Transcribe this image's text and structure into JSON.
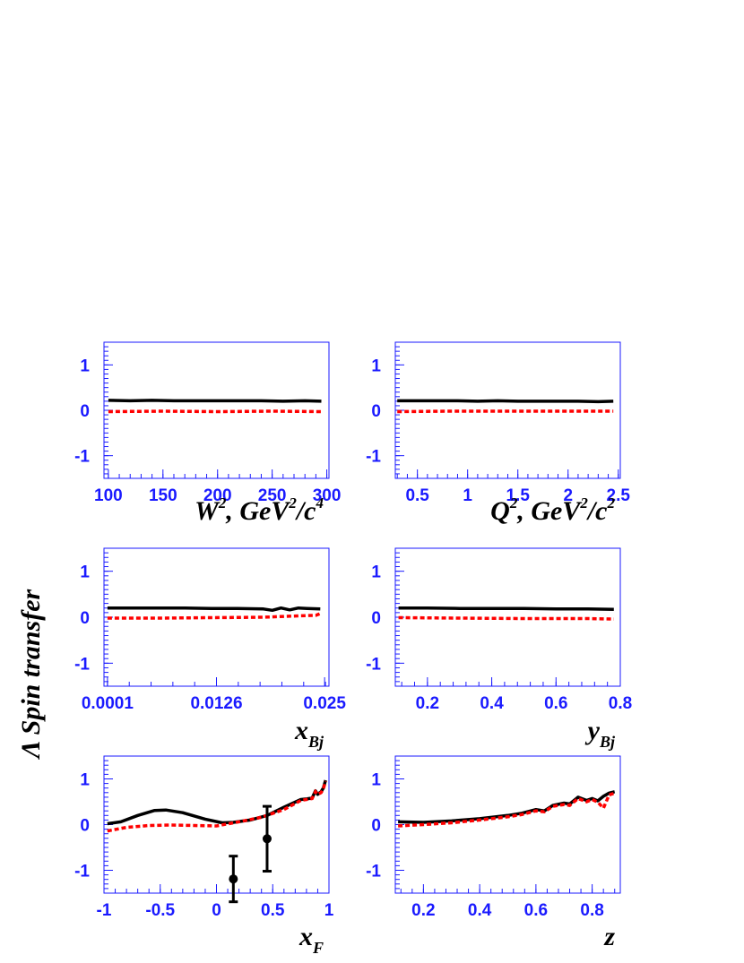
{
  "ylabel": "Λ Spin transfer",
  "colors": {
    "axis": "#1a1aff",
    "solid": "#000000",
    "dashed": "#ff0000"
  },
  "chart_data": [
    {
      "type": "line",
      "panel": "top-left",
      "xlabel": {
        "main": "W",
        "sup": "2",
        "rest": ", GeV",
        "sup2": "2",
        "rest2": "/c",
        "sup3": "4"
      },
      "xlim": [
        96,
        302
      ],
      "ylim": [
        -1.5,
        1.5
      ],
      "xticks": [
        100,
        150,
        200,
        250,
        300
      ],
      "xtick_labels": [
        "100",
        "150",
        "200",
        "250",
        "300"
      ],
      "yticks": [
        -1,
        0,
        1
      ],
      "ytick_labels": [
        "-1",
        "0",
        "1"
      ],
      "series": [
        {
          "style": "solid",
          "x": [
            100,
            120,
            140,
            160,
            180,
            200,
            220,
            240,
            260,
            280,
            295
          ],
          "y": [
            0.22,
            0.21,
            0.22,
            0.21,
            0.21,
            0.21,
            0.21,
            0.21,
            0.2,
            0.21,
            0.2
          ]
        },
        {
          "style": "dashed",
          "x": [
            100,
            150,
            200,
            250,
            295
          ],
          "y": [
            -0.03,
            -0.02,
            -0.03,
            -0.02,
            -0.03
          ]
        }
      ]
    },
    {
      "type": "line",
      "panel": "top-right",
      "xlabel": {
        "main": "Q",
        "sup": "2",
        "rest": ", GeV",
        "sup2": "2",
        "rest2": "/c",
        "sup3": "2"
      },
      "xlim": [
        0.28,
        2.52
      ],
      "ylim": [
        -1.5,
        1.5
      ],
      "xticks": [
        0.5,
        1,
        1.5,
        2,
        2.5
      ],
      "xtick_labels": [
        "0.5",
        "1",
        "1.5",
        "2",
        "2.5"
      ],
      "yticks": [
        -1,
        0,
        1
      ],
      "ytick_labels": [
        "-1",
        "0",
        "1"
      ],
      "series": [
        {
          "style": "solid",
          "x": [
            0.3,
            0.5,
            0.7,
            0.9,
            1.1,
            1.3,
            1.5,
            1.7,
            1.9,
            2.1,
            2.3,
            2.45
          ],
          "y": [
            0.21,
            0.21,
            0.21,
            0.21,
            0.2,
            0.21,
            0.2,
            0.2,
            0.2,
            0.2,
            0.19,
            0.2
          ]
        },
        {
          "style": "dashed",
          "x": [
            0.3,
            0.8,
            1.3,
            1.8,
            2.45
          ],
          "y": [
            -0.03,
            -0.02,
            -0.02,
            -0.02,
            -0.02
          ]
        }
      ]
    },
    {
      "type": "line",
      "panel": "middle-left",
      "xlabel": {
        "main": "x",
        "sub": "Bj"
      },
      "xlim": [
        -0.0003,
        0.0255
      ],
      "ylim": [
        -1.5,
        1.5
      ],
      "xticks": [
        0.0001,
        0.0126,
        0.025
      ],
      "xtick_labels": [
        "0.0001",
        "0.0126",
        "0.025"
      ],
      "yticks": [
        -1,
        0,
        1
      ],
      "ytick_labels": [
        "-1",
        "0",
        "1"
      ],
      "series": [
        {
          "style": "solid",
          "x": [
            0.0001,
            0.003,
            0.006,
            0.009,
            0.012,
            0.015,
            0.018,
            0.019,
            0.02,
            0.021,
            0.022,
            0.023,
            0.0245
          ],
          "y": [
            0.2,
            0.2,
            0.2,
            0.2,
            0.19,
            0.19,
            0.18,
            0.15,
            0.2,
            0.16,
            0.2,
            0.19,
            0.18
          ]
        },
        {
          "style": "dashed",
          "x": [
            0.0001,
            0.006,
            0.012,
            0.018,
            0.022,
            0.024,
            0.0245
          ],
          "y": [
            -0.02,
            -0.02,
            -0.01,
            0.0,
            0.03,
            0.04,
            0.08
          ]
        }
      ]
    },
    {
      "type": "line",
      "panel": "middle-right",
      "xlabel": {
        "main": "y",
        "sub": "Bj"
      },
      "xlim": [
        0.1,
        0.8
      ],
      "ylim": [
        -1.5,
        1.5
      ],
      "xticks": [
        0.2,
        0.4,
        0.6,
        0.8
      ],
      "xtick_labels": [
        "0.2",
        "0.4",
        "0.6",
        "0.8"
      ],
      "yticks": [
        -1,
        0,
        1
      ],
      "ytick_labels": [
        "-1",
        "0",
        "1"
      ],
      "series": [
        {
          "style": "solid",
          "x": [
            0.11,
            0.2,
            0.3,
            0.4,
            0.5,
            0.6,
            0.7,
            0.78
          ],
          "y": [
            0.2,
            0.2,
            0.19,
            0.19,
            0.19,
            0.18,
            0.18,
            0.17
          ]
        },
        {
          "style": "dashed",
          "x": [
            0.11,
            0.3,
            0.5,
            0.7,
            0.78
          ],
          "y": [
            -0.01,
            -0.02,
            -0.03,
            -0.03,
            -0.04
          ]
        }
      ]
    },
    {
      "type": "line",
      "panel": "bottom-left",
      "xlabel": {
        "main": "x",
        "sub": "F"
      },
      "xlim": [
        -1.0,
        1.0
      ],
      "ylim": [
        -1.5,
        1.5
      ],
      "xticks": [
        -1,
        -0.5,
        0,
        0.5,
        1
      ],
      "xtick_labels": [
        "-1",
        "-0.5",
        "0",
        "0.5",
        "1"
      ],
      "yticks": [
        -1,
        0,
        1
      ],
      "ytick_labels": [
        "-1",
        "0",
        "1"
      ],
      "series": [
        {
          "style": "solid",
          "x": [
            -0.97,
            -0.85,
            -0.7,
            -0.55,
            -0.45,
            -0.3,
            -0.1,
            0.05,
            0.15,
            0.3,
            0.45,
            0.6,
            0.75,
            0.8,
            0.85,
            0.88,
            0.9,
            0.93,
            0.95,
            0.97
          ],
          "y": [
            0.02,
            0.06,
            0.2,
            0.31,
            0.32,
            0.26,
            0.12,
            0.04,
            0.05,
            0.1,
            0.2,
            0.38,
            0.55,
            0.56,
            0.58,
            0.74,
            0.66,
            0.72,
            0.8,
            0.97
          ]
        },
        {
          "style": "dashed",
          "x": [
            -0.97,
            -0.8,
            -0.6,
            -0.4,
            -0.2,
            0.0,
            0.2,
            0.4,
            0.6,
            0.75,
            0.8,
            0.85,
            0.88,
            0.9,
            0.93,
            0.95,
            0.97
          ],
          "y": [
            -0.14,
            -0.06,
            -0.02,
            -0.01,
            -0.02,
            -0.03,
            0.06,
            0.16,
            0.33,
            0.53,
            0.55,
            0.57,
            0.72,
            0.66,
            0.7,
            0.78,
            0.95
          ]
        }
      ],
      "points": [
        {
          "x": 0.15,
          "y": -1.19,
          "err": 0.5
        },
        {
          "x": 0.45,
          "y": -0.31,
          "err": 0.71
        }
      ]
    },
    {
      "type": "line",
      "panel": "bottom-right",
      "xlabel": {
        "main": "z"
      },
      "xlim": [
        0.1,
        0.9
      ],
      "ylim": [
        -1.5,
        1.5
      ],
      "xticks": [
        0.2,
        0.4,
        0.6,
        0.8
      ],
      "xtick_labels": [
        "0.2",
        "0.4",
        "0.6",
        "0.8"
      ],
      "yticks": [
        -1,
        0,
        1
      ],
      "ytick_labels": [
        "-1",
        "0",
        "1"
      ],
      "series": [
        {
          "style": "solid",
          "x": [
            0.11,
            0.2,
            0.3,
            0.4,
            0.5,
            0.55,
            0.6,
            0.63,
            0.66,
            0.7,
            0.72,
            0.75,
            0.78,
            0.8,
            0.82,
            0.84,
            0.86,
            0.88
          ],
          "y": [
            0.06,
            0.05,
            0.08,
            0.13,
            0.2,
            0.25,
            0.33,
            0.3,
            0.42,
            0.47,
            0.45,
            0.6,
            0.53,
            0.57,
            0.52,
            0.62,
            0.69,
            0.72
          ]
        },
        {
          "style": "dashed",
          "x": [
            0.11,
            0.2,
            0.3,
            0.4,
            0.5,
            0.55,
            0.6,
            0.63,
            0.66,
            0.7,
            0.72,
            0.75,
            0.78,
            0.8,
            0.82,
            0.84,
            0.86,
            0.88
          ],
          "y": [
            -0.03,
            0.0,
            0.04,
            0.1,
            0.17,
            0.22,
            0.3,
            0.28,
            0.4,
            0.44,
            0.42,
            0.57,
            0.5,
            0.55,
            0.49,
            0.36,
            0.65,
            0.69
          ]
        }
      ]
    }
  ]
}
